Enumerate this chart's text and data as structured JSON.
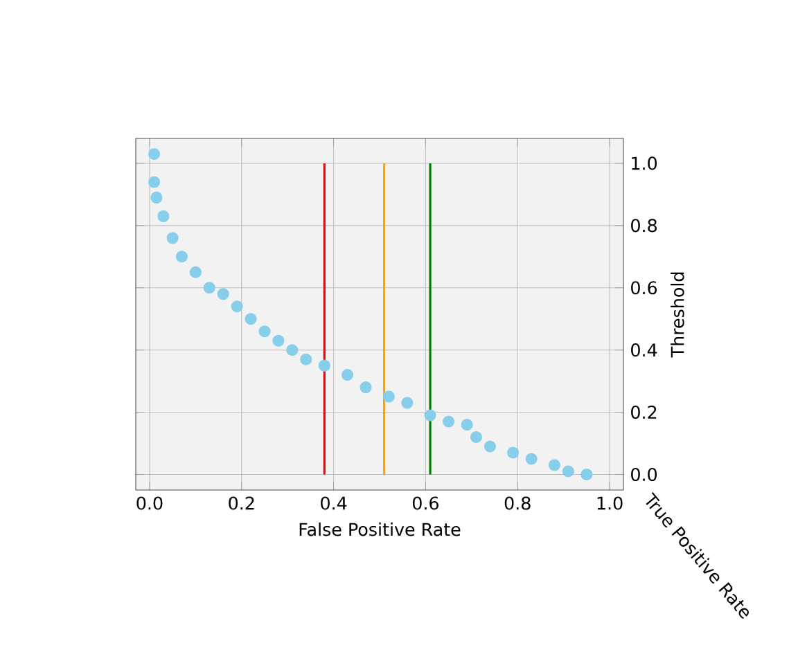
{
  "chart_data": {
    "type": "scatter",
    "xlabel": "False Positive Rate",
    "ylabel": "Threshold",
    "annotations": [
      "True Positive Rate"
    ],
    "xlim": [
      -0.03,
      1.03
    ],
    "xticks": [
      {
        "value": 0,
        "label": "0.0"
      },
      0.2,
      0.4,
      0.6,
      0.8,
      {
        "value": 1,
        "label": "1.0"
      }
    ],
    "ylim": [
      -0.05,
      1.08
    ],
    "yticks": [
      {
        "value": 0,
        "label": "0.0"
      },
      0.2,
      0.4,
      0.6,
      0.8,
      {
        "value": 1,
        "label": "1.0"
      }
    ],
    "grid": true,
    "series": [
      {
        "color": "#87ceeb",
        "x": [
          0.01,
          0.01,
          0.015,
          0.03,
          0.05,
          0.07,
          0.1,
          0.13,
          0.16,
          0.19,
          0.22,
          0.25,
          0.28,
          0.31,
          0.34,
          0.38,
          0.43,
          0.47,
          0.52,
          0.56,
          0.61,
          0.65,
          0.69,
          0.71,
          0.74,
          0.79,
          0.83,
          0.88,
          0.91,
          0.95
        ],
        "values": [
          1.03,
          0.94,
          0.89,
          0.83,
          0.76,
          0.7,
          0.65,
          0.6,
          0.58,
          0.54,
          0.5,
          0.46,
          0.43,
          0.4,
          0.37,
          0.35,
          0.32,
          0.28,
          0.25,
          0.23,
          0.19,
          0.17,
          0.16,
          0.12,
          0.09,
          0.07,
          0.05,
          0.03,
          0.01,
          0.0
        ]
      }
    ],
    "ref_lines": [
      {
        "axis": "x",
        "value": 0.38,
        "color": "#ff0000"
      },
      {
        "axis": "x",
        "value": 0.51,
        "color": "#ffa500"
      },
      {
        "axis": "x",
        "value": 0.61,
        "color": "#008000"
      }
    ]
  }
}
